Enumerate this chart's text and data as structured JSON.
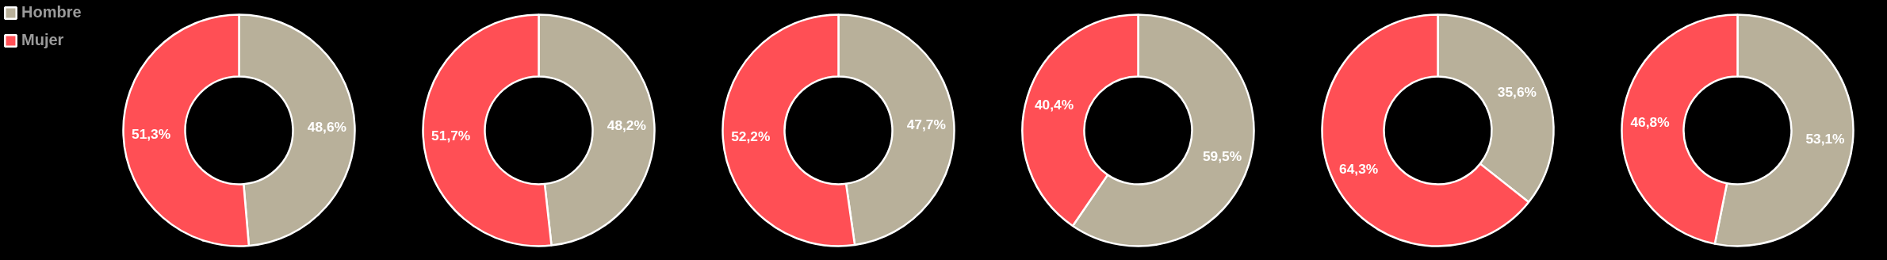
{
  "chart_data": [
    {
      "type": "donut",
      "categories": [
        "Hombre",
        "Mujer"
      ],
      "values": [
        48.6,
        51.3
      ],
      "colors": [
        "#b8b09a",
        "#ff4f55"
      ],
      "value_labels": [
        "48,6%",
        "51,3%"
      ],
      "legend": "top left"
    },
    {
      "type": "donut",
      "categories": [
        null,
        null
      ],
      "values": [
        48.2,
        51.7
      ],
      "colors": [
        "#b8b09a",
        "#ff4f55"
      ],
      "value_labels": [
        "48,2%",
        "51,7%"
      ]
    },
    {
      "type": "donut",
      "categories": [
        null,
        null
      ],
      "values": [
        47.7,
        52.2
      ],
      "colors": [
        "#b8b09a",
        "#ff4f55"
      ],
      "value_labels": [
        "47,7%",
        "52,2%"
      ]
    },
    {
      "type": "donut",
      "categories": [
        null,
        null
      ],
      "values": [
        59.5,
        40.4
      ],
      "colors": [
        "#b8b09a",
        "#ff4f55"
      ],
      "value_labels": [
        "59,5%",
        "40,4%"
      ]
    },
    {
      "type": "donut",
      "categories": [
        null,
        null
      ],
      "values": [
        35.6,
        64.3
      ],
      "colors": [
        "#b8b09a",
        "#ff4f55"
      ],
      "value_labels": [
        "35,6%",
        "64,3%"
      ]
    },
    {
      "type": "donut",
      "categories": [
        null,
        null
      ],
      "values": [
        53.1,
        46.8
      ],
      "colors": [
        "#b8b09a",
        "#ff4f55"
      ],
      "value_labels": [
        "53,1%",
        "46,8%"
      ]
    }
  ]
}
